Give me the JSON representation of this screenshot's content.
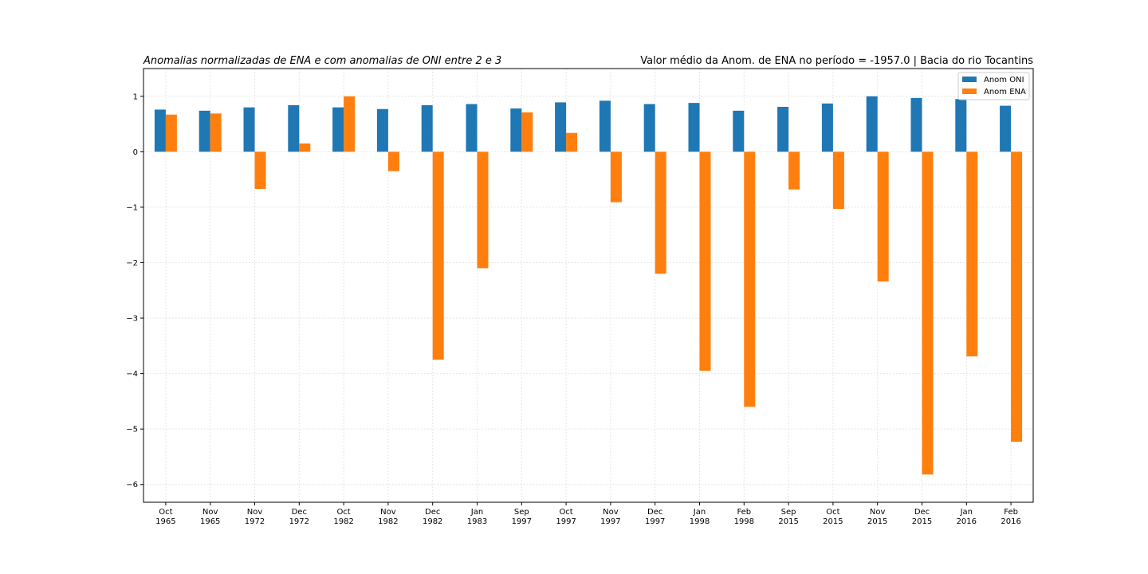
{
  "chart_data": {
    "type": "bar",
    "title_left": "Anomalias normalizadas de ENA e com anomalias de ONI entre 2 e 3",
    "title_right": "Valor médio da Anom. de ENA no período = -1957.0 | Bacia do rio Tocantins",
    "xlabel": "",
    "ylabel": "",
    "categories": [
      {
        "month": "Oct",
        "year": "1965"
      },
      {
        "month": "Nov",
        "year": "1965"
      },
      {
        "month": "Nov",
        "year": "1972"
      },
      {
        "month": "Dec",
        "year": "1972"
      },
      {
        "month": "Oct",
        "year": "1982"
      },
      {
        "month": "Nov",
        "year": "1982"
      },
      {
        "month": "Dec",
        "year": "1982"
      },
      {
        "month": "Jan",
        "year": "1983"
      },
      {
        "month": "Sep",
        "year": "1997"
      },
      {
        "month": "Oct",
        "year": "1997"
      },
      {
        "month": "Nov",
        "year": "1997"
      },
      {
        "month": "Dec",
        "year": "1997"
      },
      {
        "month": "Jan",
        "year": "1998"
      },
      {
        "month": "Feb",
        "year": "1998"
      },
      {
        "month": "Sep",
        "year": "2015"
      },
      {
        "month": "Oct",
        "year": "2015"
      },
      {
        "month": "Nov",
        "year": "2015"
      },
      {
        "month": "Dec",
        "year": "2015"
      },
      {
        "month": "Jan",
        "year": "2016"
      },
      {
        "month": "Feb",
        "year": "2016"
      }
    ],
    "series": [
      {
        "name": "Anom ONI",
        "color": "#1f77b4",
        "values": [
          0.76,
          0.74,
          0.8,
          0.84,
          0.8,
          0.77,
          0.84,
          0.86,
          0.78,
          0.89,
          0.92,
          0.86,
          0.88,
          0.74,
          0.81,
          0.87,
          1.0,
          0.97,
          0.95,
          0.83
        ]
      },
      {
        "name": "Anom ENA",
        "color": "#ff7f0e",
        "values": [
          0.67,
          0.69,
          -0.67,
          0.15,
          1.0,
          -0.35,
          -3.75,
          -2.1,
          0.71,
          0.34,
          -0.91,
          -2.2,
          -3.95,
          -4.6,
          -0.68,
          -1.03,
          -2.34,
          -5.82,
          -3.69,
          -5.23
        ]
      }
    ],
    "ylim": [
      -6.32,
      1.5
    ],
    "yticks": [
      1,
      0,
      -1,
      -2,
      -3,
      -4,
      -5,
      -6
    ],
    "ytick_labels": [
      "1",
      "0",
      "−1",
      "−2",
      "−3",
      "−4",
      "−5",
      "−6"
    ],
    "grid": true,
    "legend_position": "top-right"
  }
}
